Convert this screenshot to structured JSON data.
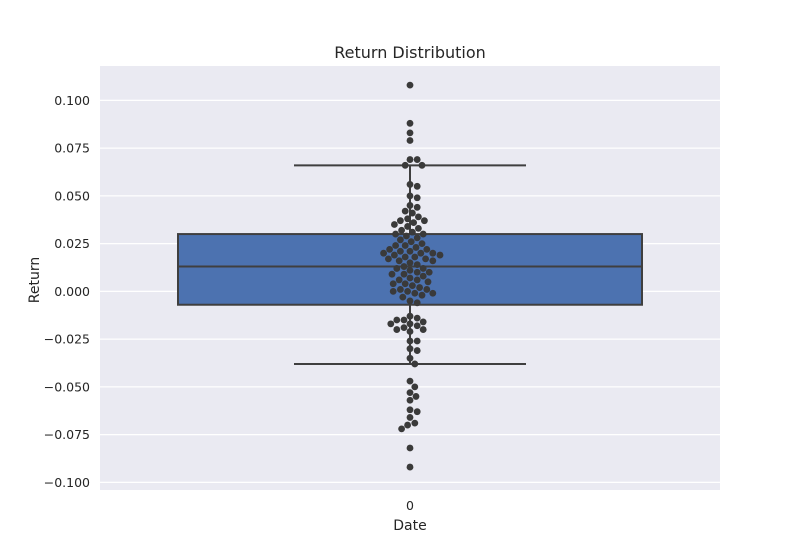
{
  "chart_data": {
    "type": "box",
    "title": "Return Distribution",
    "xlabel": "Date",
    "ylabel": "Return",
    "categories": [
      "0"
    ],
    "ylim": [
      -0.104,
      0.118
    ],
    "yticks": [
      "0.100",
      "0.075",
      "0.050",
      "0.025",
      "0.000",
      "−0.025",
      "−0.050",
      "−0.075",
      "−0.100"
    ],
    "grid": true,
    "box": {
      "q1": -0.007,
      "median": 0.013,
      "q3": 0.03,
      "whisker_low": -0.038,
      "whisker_high": 0.066
    },
    "points": [
      0.108,
      0.088,
      0.083,
      0.079,
      0.069,
      0.069,
      0.066,
      0.066,
      0.056,
      0.055,
      0.05,
      0.049,
      0.045,
      0.044,
      0.042,
      0.041,
      0.039,
      0.038,
      0.037,
      0.037,
      0.036,
      0.035,
      0.034,
      0.033,
      0.032,
      0.031,
      0.03,
      0.03,
      0.029,
      0.028,
      0.027,
      0.026,
      0.025,
      0.024,
      0.024,
      0.023,
      0.022,
      0.022,
      0.021,
      0.021,
      0.02,
      0.02,
      0.02,
      0.019,
      0.019,
      0.018,
      0.018,
      0.017,
      0.017,
      0.016,
      0.016,
      0.015,
      0.014,
      0.013,
      0.012,
      0.012,
      0.011,
      0.01,
      0.01,
      0.009,
      0.009,
      0.008,
      0.007,
      0.006,
      0.006,
      0.005,
      0.004,
      0.004,
      0.003,
      0.002,
      0.001,
      0.001,
      0.0,
      0.0,
      -0.001,
      -0.001,
      -0.002,
      -0.003,
      -0.005,
      -0.006,
      -0.013,
      -0.014,
      -0.015,
      -0.015,
      -0.016,
      -0.017,
      -0.017,
      -0.018,
      -0.019,
      -0.02,
      -0.02,
      -0.021,
      -0.026,
      -0.026,
      -0.03,
      -0.031,
      -0.035,
      -0.038,
      -0.047,
      -0.05,
      -0.053,
      -0.055,
      -0.057,
      -0.062,
      -0.063,
      -0.066,
      -0.069,
      -0.07,
      -0.072,
      -0.082,
      -0.092
    ],
    "colors": {
      "background": "#eaeaf2",
      "grid": "#ffffff",
      "box_fill": "#4c72b0",
      "box_edge": "#3f3f3f",
      "points": "#3a3a3a"
    }
  }
}
